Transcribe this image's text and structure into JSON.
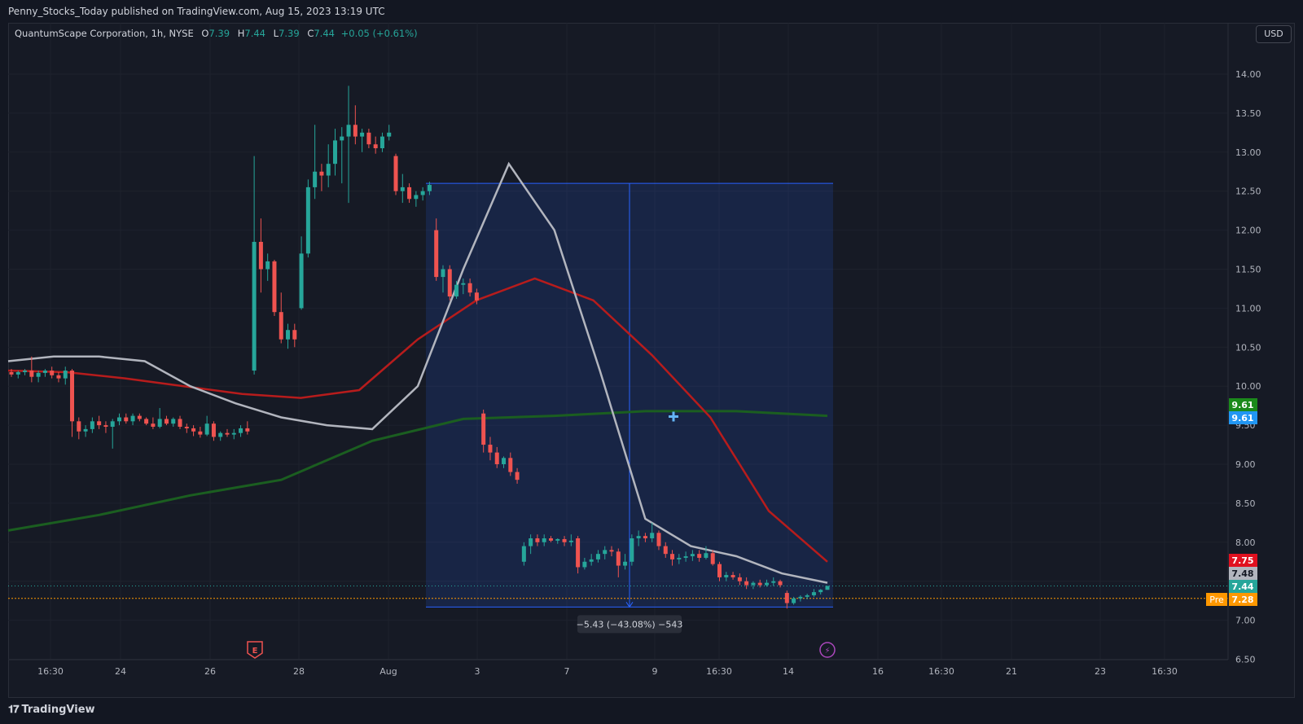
{
  "header": {
    "published": "Penny_Stocks_Today published on TradingView.com, Aug 15, 2023 13:19 UTC"
  },
  "legend": {
    "symbol": "QuantumScape Corporation, 1h, NYSE",
    "open_label": "O",
    "open": "7.39",
    "high_label": "H",
    "high": "7.44",
    "low_label": "L",
    "low": "7.39",
    "close_label": "C",
    "close": "7.44",
    "change": "+0.05 (+0.61%)"
  },
  "currency_button": "USD",
  "footer": {
    "brand": "TradingView"
  },
  "colors": {
    "up": "#26a69a",
    "down": "#ef5350",
    "ma_fast": "#b2b5be",
    "ma_mid": "#b71c1c",
    "ma_slow": "#1b5e20",
    "measure": "#2962ff",
    "premarket": "#ff9800"
  },
  "chart_data": {
    "type": "candlestick",
    "symbol": "QuantumScape Corporation",
    "interval": "1h",
    "ylim": [
      6.5,
      14.25
    ],
    "y_ticks": [
      "14.00",
      "13.50",
      "13.00",
      "12.50",
      "12.00",
      "11.50",
      "11.00",
      "10.50",
      "10.00",
      "9.50",
      "9.00",
      "8.50",
      "8.00",
      "7.50",
      "7.00",
      "6.50"
    ],
    "x_ticks": [
      "16:30",
      "24",
      "26",
      "28",
      "Aug",
      "3",
      "7",
      "9",
      "16:30",
      "14",
      "16",
      "16:30",
      "21",
      "23",
      "16:30"
    ],
    "candles": [
      [
        10.18,
        10.22,
        10.12,
        10.15
      ],
      [
        10.15,
        10.2,
        10.1,
        10.18
      ],
      [
        10.18,
        10.22,
        10.14,
        10.2
      ],
      [
        10.2,
        10.38,
        10.05,
        10.12
      ],
      [
        10.12,
        10.2,
        10.05,
        10.17
      ],
      [
        10.17,
        10.22,
        10.12,
        10.2
      ],
      [
        10.2,
        10.25,
        10.1,
        10.14
      ],
      [
        10.14,
        10.18,
        10.05,
        10.1
      ],
      [
        10.1,
        10.25,
        10.02,
        10.2
      ],
      [
        10.2,
        10.22,
        9.35,
        9.55
      ],
      [
        9.55,
        9.6,
        9.32,
        9.42
      ],
      [
        9.42,
        9.5,
        9.35,
        9.45
      ],
      [
        9.45,
        9.6,
        9.4,
        9.55
      ],
      [
        9.55,
        9.62,
        9.45,
        9.5
      ],
      [
        9.5,
        9.55,
        9.4,
        9.48
      ],
      [
        9.48,
        9.58,
        9.2,
        9.55
      ],
      [
        9.55,
        9.65,
        9.5,
        9.6
      ],
      [
        9.6,
        9.65,
        9.52,
        9.55
      ],
      [
        9.55,
        9.65,
        9.5,
        9.62
      ],
      [
        9.62,
        9.65,
        9.55,
        9.58
      ],
      [
        9.58,
        9.6,
        9.5,
        9.52
      ],
      [
        9.52,
        9.6,
        9.45,
        9.48
      ],
      [
        9.48,
        9.72,
        9.46,
        9.58
      ],
      [
        9.58,
        9.62,
        9.5,
        9.52
      ],
      [
        9.52,
        9.6,
        9.48,
        9.58
      ],
      [
        9.58,
        9.62,
        9.45,
        9.48
      ],
      [
        9.48,
        9.52,
        9.4,
        9.46
      ],
      [
        9.46,
        9.5,
        9.36,
        9.42
      ],
      [
        9.42,
        9.48,
        9.34,
        9.38
      ],
      [
        9.38,
        9.62,
        9.36,
        9.52
      ],
      [
        9.52,
        9.55,
        9.3,
        9.35
      ],
      [
        9.35,
        9.42,
        9.3,
        9.4
      ],
      [
        9.4,
        9.45,
        9.35,
        9.38
      ],
      [
        9.38,
        9.45,
        9.32,
        9.4
      ],
      [
        9.4,
        9.5,
        9.35,
        9.46
      ],
      [
        9.46,
        9.55,
        9.38,
        9.42
      ],
      [
        10.2,
        12.95,
        10.15,
        11.85
      ],
      [
        11.85,
        12.15,
        11.2,
        11.5
      ],
      [
        11.5,
        11.7,
        11.35,
        11.6
      ],
      [
        11.6,
        11.62,
        10.9,
        10.95
      ],
      [
        10.95,
        11.2,
        10.55,
        10.6
      ],
      [
        10.6,
        10.8,
        10.48,
        10.72
      ],
      [
        10.72,
        10.8,
        10.5,
        10.6
      ],
      [
        11.0,
        11.92,
        10.98,
        11.7
      ],
      [
        11.7,
        12.65,
        11.65,
        12.55
      ],
      [
        12.55,
        13.35,
        12.4,
        12.75
      ],
      [
        12.75,
        12.85,
        12.5,
        12.7
      ],
      [
        12.7,
        13.1,
        12.55,
        12.85
      ],
      [
        12.85,
        13.3,
        12.7,
        13.15
      ],
      [
        13.15,
        13.32,
        12.6,
        13.2
      ],
      [
        13.2,
        13.85,
        12.35,
        13.35
      ],
      [
        13.35,
        13.6,
        13.1,
        13.2
      ],
      [
        13.2,
        13.3,
        13.0,
        13.25
      ],
      [
        13.25,
        13.3,
        13.05,
        13.1
      ],
      [
        13.1,
        13.2,
        12.98,
        13.05
      ],
      [
        13.05,
        13.25,
        13.0,
        13.2
      ],
      [
        13.2,
        13.35,
        13.15,
        13.25
      ],
      [
        12.95,
        12.98,
        12.45,
        12.5
      ],
      [
        12.5,
        12.72,
        12.35,
        12.55
      ],
      [
        12.55,
        12.6,
        12.35,
        12.4
      ],
      [
        12.4,
        12.5,
        12.3,
        12.45
      ],
      [
        12.45,
        12.55,
        12.38,
        12.5
      ],
      [
        12.5,
        12.62,
        12.45,
        12.58
      ],
      [
        12.0,
        12.15,
        11.35,
        11.4
      ],
      [
        11.4,
        11.55,
        11.2,
        11.5
      ],
      [
        11.5,
        11.55,
        11.1,
        11.15
      ],
      [
        11.15,
        11.35,
        11.12,
        11.3
      ],
      [
        11.3,
        11.38,
        11.18,
        11.32
      ],
      [
        11.32,
        11.38,
        11.15,
        11.2
      ],
      [
        11.2,
        11.25,
        11.05,
        11.1
      ],
      [
        9.65,
        9.7,
        9.15,
        9.25
      ],
      [
        9.25,
        9.35,
        9.05,
        9.15
      ],
      [
        9.15,
        9.22,
        8.95,
        9.0
      ],
      [
        9.0,
        9.1,
        8.95,
        9.08
      ],
      [
        9.08,
        9.15,
        8.85,
        8.9
      ],
      [
        8.9,
        8.95,
        8.75,
        8.8
      ],
      [
        7.75,
        8.0,
        7.7,
        7.95
      ],
      [
        7.95,
        8.1,
        7.85,
        8.05
      ],
      [
        8.05,
        8.1,
        7.95,
        8.0
      ],
      [
        8.0,
        8.1,
        7.95,
        8.05
      ],
      [
        8.05,
        8.08,
        8.0,
        8.02
      ],
      [
        8.02,
        8.05,
        7.98,
        8.04
      ],
      [
        8.04,
        8.08,
        7.95,
        8.0
      ],
      [
        8.0,
        8.1,
        7.95,
        8.02
      ],
      [
        8.05,
        8.08,
        7.6,
        7.68
      ],
      [
        7.68,
        7.8,
        7.65,
        7.75
      ],
      [
        7.75,
        7.85,
        7.7,
        7.78
      ],
      [
        7.78,
        7.9,
        7.74,
        7.85
      ],
      [
        7.85,
        7.95,
        7.78,
        7.9
      ],
      [
        7.9,
        7.95,
        7.82,
        7.88
      ],
      [
        7.88,
        7.92,
        7.55,
        7.7
      ],
      [
        7.7,
        7.85,
        7.65,
        7.75
      ],
      [
        7.75,
        8.1,
        7.7,
        8.05
      ],
      [
        8.05,
        8.15,
        7.95,
        8.08
      ],
      [
        8.08,
        8.12,
        8.0,
        8.05
      ],
      [
        8.05,
        8.25,
        8.0,
        8.12
      ],
      [
        8.12,
        8.15,
        7.9,
        7.95
      ],
      [
        7.95,
        8.0,
        7.8,
        7.85
      ],
      [
        7.85,
        7.9,
        7.7,
        7.78
      ],
      [
        7.78,
        7.85,
        7.72,
        7.8
      ],
      [
        7.8,
        7.88,
        7.75,
        7.82
      ],
      [
        7.82,
        7.9,
        7.76,
        7.85
      ],
      [
        7.85,
        7.9,
        7.75,
        7.8
      ],
      [
        7.8,
        7.95,
        7.78,
        7.86
      ],
      [
        7.86,
        7.9,
        7.7,
        7.72
      ],
      [
        7.72,
        7.75,
        7.5,
        7.55
      ],
      [
        7.55,
        7.62,
        7.5,
        7.58
      ],
      [
        7.58,
        7.62,
        7.52,
        7.55
      ],
      [
        7.55,
        7.6,
        7.45,
        7.5
      ],
      [
        7.5,
        7.55,
        7.4,
        7.45
      ],
      [
        7.45,
        7.5,
        7.4,
        7.48
      ],
      [
        7.48,
        7.52,
        7.42,
        7.45
      ],
      [
        7.45,
        7.52,
        7.43,
        7.48
      ],
      [
        7.48,
        7.55,
        7.44,
        7.5
      ],
      [
        7.5,
        7.52,
        7.42,
        7.45
      ],
      [
        7.35,
        7.38,
        7.15,
        7.22
      ],
      [
        7.22,
        7.3,
        7.2,
        7.28
      ],
      [
        7.28,
        7.32,
        7.24,
        7.3
      ],
      [
        7.3,
        7.34,
        7.27,
        7.32
      ],
      [
        7.32,
        7.4,
        7.3,
        7.36
      ],
      [
        7.36,
        7.4,
        7.33,
        7.39
      ],
      [
        7.39,
        7.44,
        7.39,
        7.44
      ]
    ],
    "ma_fast": [
      10.32,
      10.38,
      10.38,
      10.32,
      10.0,
      9.78,
      9.6,
      9.5,
      9.45,
      10.0,
      11.5,
      12.85,
      12.0,
      10.2,
      8.3,
      7.95,
      7.82,
      7.6,
      7.48
    ],
    "ma_mid": [
      10.2,
      10.18,
      10.1,
      10.0,
      9.9,
      9.85,
      9.95,
      10.6,
      11.1,
      11.38,
      11.1,
      10.4,
      9.6,
      8.4,
      7.75
    ],
    "ma_slow": [
      8.15,
      8.35,
      8.6,
      8.8,
      9.3,
      9.58,
      9.62,
      9.68,
      9.68,
      9.62
    ],
    "measure": {
      "from": 12.6,
      "to": 7.17,
      "label": "−5.43 (−43.08%) −543"
    },
    "price_labels": [
      {
        "text": "9.61",
        "color": "#1b8a1b",
        "value": 9.61
      },
      {
        "text": "9.61",
        "color": "#2196f3",
        "value": 9.61
      },
      {
        "text": "7.75",
        "color": "#e0101f",
        "value": 7.75
      },
      {
        "text": "7.48",
        "color": "#b2b5be",
        "value": 7.48
      },
      {
        "text": "7.44",
        "color": "#26a69a",
        "value": 7.44
      },
      {
        "text": "7.28",
        "color": "#ff9800",
        "value": 7.28
      }
    ],
    "premarket_label": "Pre",
    "event_markers": [
      "E",
      "⚡"
    ]
  }
}
